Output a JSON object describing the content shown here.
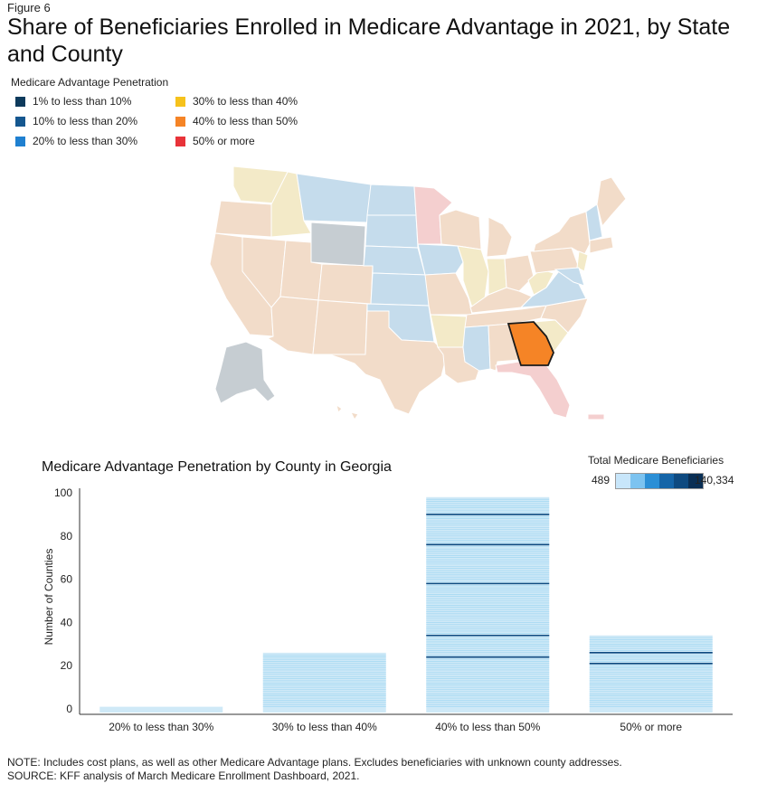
{
  "figure_label": "Figure 6",
  "title": "Share of Beneficiaries Enrolled in Medicare Advantage in 2021, by State and County",
  "map_legend": {
    "title": "Medicare Advantage Penetration",
    "items": [
      {
        "label": "1% to less than 10%",
        "color": "#0d3a5c"
      },
      {
        "label": "10% to less than 20%",
        "color": "#15578f"
      },
      {
        "label": "20% to less than 30%",
        "color": "#1f80d0"
      },
      {
        "label": "30% to less than 40%",
        "color": "#f6c21c"
      },
      {
        "label": "40% to less than 50%",
        "color": "#f58426"
      },
      {
        "label": "50% or more",
        "color": "#e83339"
      }
    ]
  },
  "map": {
    "highlighted_state": "Georgia",
    "faded_colors": {
      "20-30": "#c5dcec",
      "30-40": "#f3eac8",
      "40-50": "#f2dcc9",
      "50+": "#f4cfcf",
      "wy": "#c6cdd2",
      "highlight": "#f58426"
    }
  },
  "ramp": {
    "title": "Total Medicare Beneficiaries",
    "min_label": "489",
    "max_label": "140,334",
    "colors": [
      "#c8e6fa",
      "#7cc3f0",
      "#2b8fd6",
      "#1565a8",
      "#0e4a80",
      "#0a2f55"
    ]
  },
  "chart_data": {
    "type": "bar",
    "title": "Medicare Advantage Penetration by County in Georgia",
    "ylabel": "Number of Counties",
    "categories": [
      "20% to less than 30%",
      "30% to less than 40%",
      "40% to less than 50%",
      "50% or more"
    ],
    "values": [
      1,
      26,
      98,
      34
    ],
    "ylim": [
      0,
      100
    ],
    "yticks": [
      0,
      20,
      40,
      60,
      80,
      100
    ],
    "bar_color": "#cfe9f7",
    "line_color": "#8fd0f0",
    "dark_lines": {
      "1": [],
      "2": [
        24,
        34,
        58,
        76,
        90
      ],
      "3": [
        21,
        26
      ]
    }
  },
  "note": "NOTE: Includes cost plans, as well as other Medicare Advantage plans. Excludes beneficiaries with unknown county addresses.",
  "source": "SOURCE: KFF analysis of March Medicare Enrollment Dashboard, 2021."
}
